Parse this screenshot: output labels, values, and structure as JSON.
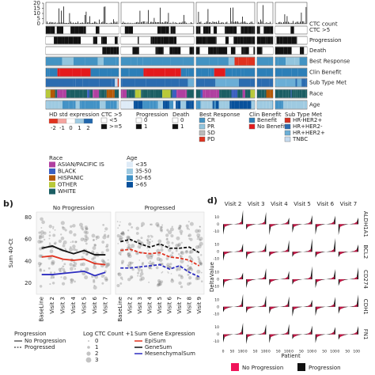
{
  "panel_a": {
    "ctc_ticks": [
      0,
      5,
      10,
      15,
      20
    ],
    "tracks": [
      "CTC count",
      "CTC >5",
      "Progression",
      "Death",
      "Best Response",
      "Clin Benefit",
      "Sub Type Met",
      "Race",
      "Age"
    ],
    "legend": {
      "expression": {
        "title": "HD std expression",
        "ticks": [
          -2,
          -1,
          0,
          1,
          2
        ]
      },
      "ctc": {
        "title": "CTC >5",
        "items": [
          "<5",
          ">=5"
        ]
      },
      "progression": {
        "title": "Progression",
        "items": [
          0,
          1
        ]
      },
      "death": {
        "title": "Death",
        "items": [
          0,
          1
        ]
      },
      "best_response": {
        "title": "Best Response",
        "items": [
          "CR",
          "PR",
          "SD",
          "PD"
        ]
      },
      "clin_benefit": {
        "title": "Clin Benefit",
        "items": [
          "Benefit",
          "No Benefit"
        ]
      },
      "sub_type": {
        "title": "Sub Type Met",
        "items": [
          "HR-HER2+",
          "HR+HER2-",
          "HR+HER2+",
          "TNBC"
        ]
      },
      "race": {
        "title": "Race",
        "items": [
          "ASIAN/PACIFIC IS",
          "BLACK",
          "HISPANIC",
          "OTHER",
          "WHITE"
        ]
      },
      "age": {
        "title": "Age",
        "items": [
          "<35",
          "35-50",
          "50-65",
          ">65"
        ]
      }
    }
  },
  "panel_b": {
    "label": "b)",
    "titles": [
      "No Progression",
      "Progressed"
    ],
    "y_label": "Sum 40-Ct",
    "yticks": [
      80,
      60,
      40,
      20
    ],
    "x_left": [
      "BaseLine",
      "Visit 2",
      "Visit 3",
      "Visit 4",
      "Visit 5",
      "Visit 6",
      "Visit 7"
    ],
    "x_right": [
      "BaseLine",
      "Visit 2",
      "Visit 3",
      "Visit 4",
      "Visit 5",
      "Visit 6",
      "Visit 7",
      "Visit 8",
      "Visit 9"
    ],
    "legend": {
      "progression": {
        "title": "Progression",
        "items": [
          "No Progression",
          "Progressed"
        ]
      },
      "ctc": {
        "title": "Log CTC Count +1",
        "items": [
          0,
          1,
          2,
          3
        ]
      },
      "gene": {
        "title": "Sum Gene Expression",
        "items": [
          "EpiSum",
          "GeneSum",
          "MesenchymalSum"
        ]
      }
    }
  },
  "panel_d": {
    "label": "d)",
    "columns": [
      "Visit 2",
      "Visit 3",
      "Visit 4",
      "Visit 5",
      "Visit 6",
      "Visit 7"
    ],
    "rows": [
      "ALDH1A1",
      "BCL2",
      "CD274",
      "CDH1",
      "FN1"
    ],
    "y_label": "DeltaValue",
    "x_label": "Patient",
    "xticks": [
      0,
      50,
      100
    ],
    "yticks": [
      10,
      0,
      -10
    ],
    "legend": [
      "No Progression",
      "Progression"
    ]
  }
}
